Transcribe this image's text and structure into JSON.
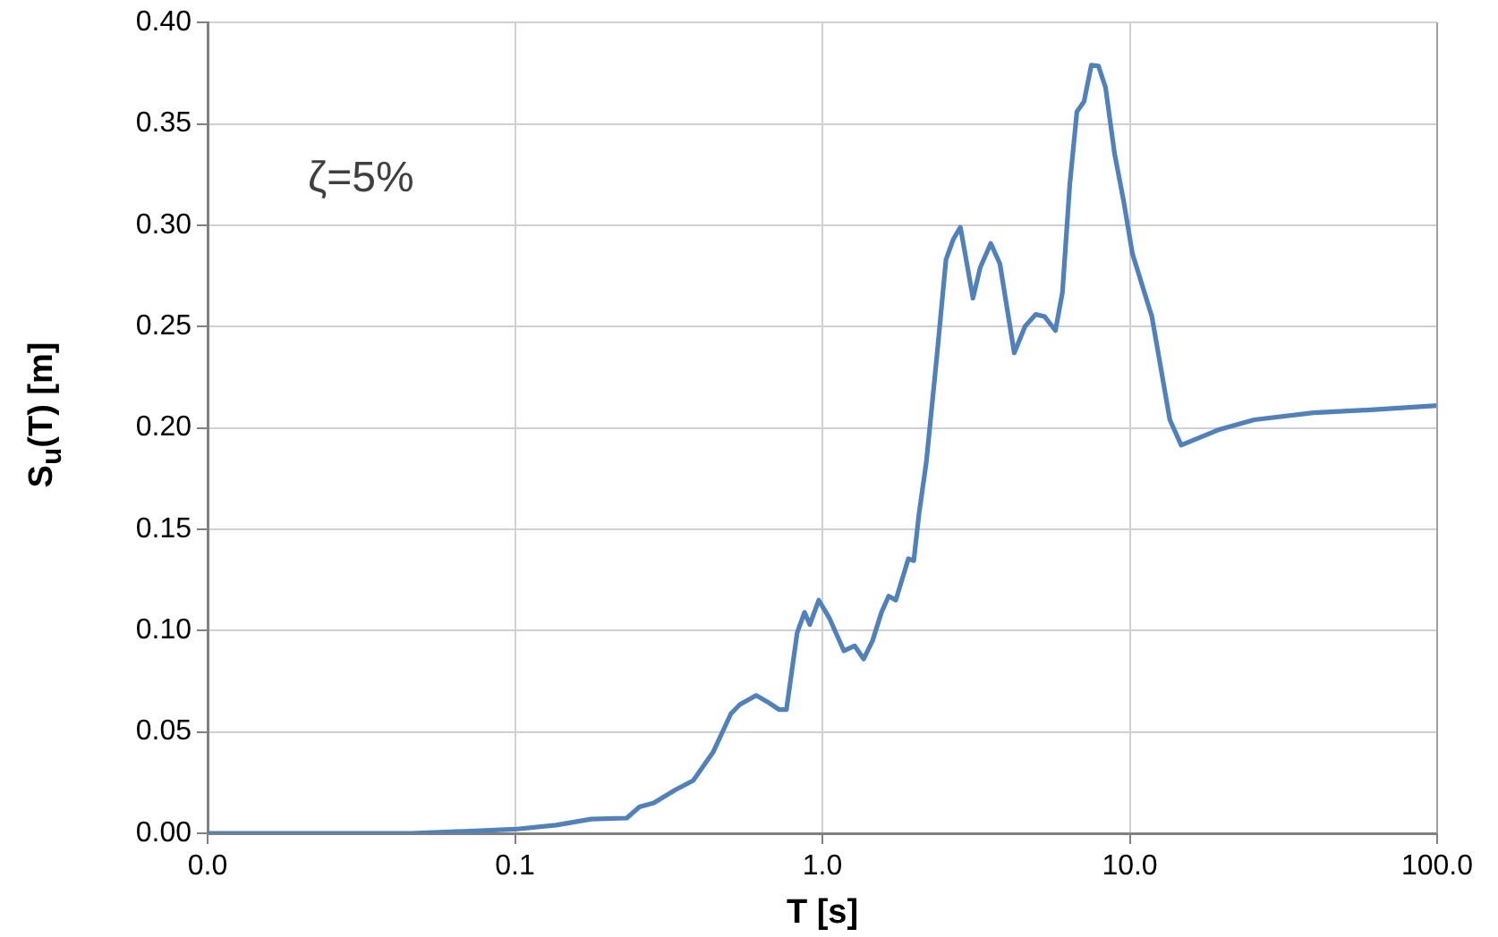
{
  "chart_data": {
    "type": "line",
    "xlabel": "T [s]",
    "ylabel": "S$_{u}$(T) [m]",
    "annotations": [
      "ζ=5%"
    ],
    "log": "x",
    "grid": true,
    "marker": "none",
    "line_style": "solid",
    "xlim": [
      0.01,
      100
    ],
    "xticks": [
      {
        "value": 0.01,
        "label": "0.0"
      },
      {
        "value": 0.1,
        "label": "0.1"
      },
      {
        "value": 1,
        "label": "1.0"
      },
      {
        "value": 10,
        "label": "10.0"
      },
      {
        "value": 100,
        "label": "100.0"
      }
    ],
    "ylim": [
      0,
      0.4
    ],
    "yticks": [
      {
        "value": 0,
        "label": "0.00"
      },
      {
        "value": 0.05,
        "label": "0.05"
      },
      {
        "value": 0.1,
        "label": "0.10"
      },
      {
        "value": 0.15,
        "label": "0.15"
      },
      {
        "value": 0.2,
        "label": "0.20"
      },
      {
        "value": 0.25,
        "label": "0.25"
      },
      {
        "value": 0.3,
        "label": "0.30"
      },
      {
        "value": 0.35,
        "label": "0.35"
      },
      {
        "value": 0.4,
        "label": "0.40"
      }
    ],
    "x": [
      0.01,
      0.046,
      0.069,
      0.1,
      0.136,
      0.177,
      0.231,
      0.254,
      0.283,
      0.333,
      0.38,
      0.441,
      0.504,
      0.539,
      0.609,
      0.66,
      0.724,
      0.764,
      0.828,
      0.875,
      0.91,
      0.973,
      1.055,
      1.175,
      1.273,
      1.362,
      1.456,
      1.557,
      1.643,
      1.733,
      1.905,
      1.983,
      2.064,
      2.178,
      2.36,
      2.524,
      2.665,
      2.812,
      3.09,
      3.26,
      3.53,
      3.78,
      4.21,
      4.56,
      4.94,
      5.28,
      5.73,
      6.04,
      6.38,
      6.73,
      7.1,
      7.5,
      7.91,
      8.34,
      8.92,
      9.55,
      10.2,
      11.8,
      13.5,
      14.7,
      19.4,
      25.4,
      39.6,
      62.5,
      100
    ],
    "series": [
      {
        "color": "#4f81bd",
        "values": [
          0,
          0,
          0.001,
          0.002,
          0.004,
          0.007,
          0.0075,
          0.013,
          0.015,
          0.0215,
          0.026,
          0.04,
          0.059,
          0.0635,
          0.068,
          0.065,
          0.061,
          0.061,
          0.099,
          0.109,
          0.103,
          0.115,
          0.106,
          0.09,
          0.0925,
          0.086,
          0.095,
          0.109,
          0.117,
          0.115,
          0.1355,
          0.1345,
          0.158,
          0.183,
          0.236,
          0.283,
          0.293,
          0.299,
          0.264,
          0.279,
          0.291,
          0.281,
          0.237,
          0.25,
          0.256,
          0.255,
          0.248,
          0.267,
          0.32,
          0.356,
          0.361,
          0.379,
          0.3785,
          0.368,
          0.3355,
          0.312,
          0.286,
          0.255,
          0.204,
          0.1915,
          0.199,
          0.204,
          0.2075,
          0.209,
          0.211
        ]
      }
    ]
  }
}
